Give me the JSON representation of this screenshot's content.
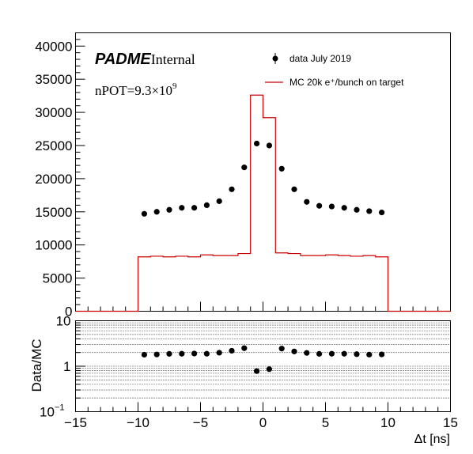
{
  "chart_data": [
    {
      "type": "histogram+points",
      "logo": {
        "bold": "PADME",
        "suffix": "Internal"
      },
      "annotation": {
        "prefix": "nPOT=9.3×10",
        "exponent": "9"
      },
      "legend": {
        "placement": "top-right",
        "data_label": "data July 2019",
        "mc_label": "MC 20k e⁺/bunch on target"
      },
      "x": [
        -14.5,
        -13.5,
        -12.5,
        -11.5,
        -10.5,
        -9.5,
        -8.5,
        -7.5,
        -6.5,
        -5.5,
        -4.5,
        -3.5,
        -2.5,
        -1.5,
        -0.5,
        0.5,
        1.5,
        2.5,
        3.5,
        4.5,
        5.5,
        6.5,
        7.5,
        8.5,
        9.5,
        10.5,
        11.5,
        12.5,
        13.5,
        14.5
      ],
      "series": [
        {
          "name": "data July 2019",
          "style": "points",
          "x": [
            -9.5,
            -8.5,
            -7.5,
            -6.5,
            -5.5,
            -4.5,
            -3.5,
            -2.5,
            -1.5,
            -0.5,
            0.5,
            1.5,
            2.5,
            3.5,
            4.5,
            5.5,
            6.5,
            7.5,
            8.5,
            9.5
          ],
          "values": [
            14700,
            15000,
            15300,
            15600,
            15600,
            16000,
            16600,
            18400,
            21700,
            25300,
            25000,
            21500,
            18400,
            16500,
            15900,
            15800,
            15600,
            15300,
            15100,
            14900
          ]
        },
        {
          "name": "MC 20k e⁺/bunch on target",
          "style": "step",
          "bin_edges": [
            -15,
            -14,
            -13,
            -12,
            -11,
            -10,
            -9,
            -8,
            -7,
            -6,
            -5,
            -4,
            -3,
            -2,
            -1,
            0,
            1,
            2,
            3,
            4,
            5,
            6,
            7,
            8,
            9,
            10,
            11,
            12,
            13,
            14,
            15
          ],
          "values": [
            0,
            0,
            0,
            0,
            0,
            8200,
            8300,
            8200,
            8300,
            8200,
            8500,
            8400,
            8400,
            8700,
            32600,
            29200,
            8800,
            8700,
            8400,
            8400,
            8500,
            8400,
            8300,
            8400,
            8200,
            0,
            0,
            0,
            0,
            0
          ]
        }
      ],
      "xlim": [
        -15,
        15
      ],
      "ylim": [
        0,
        42000
      ],
      "xticks": [
        "−15",
        "−10",
        "−5",
        "0",
        "5",
        "10",
        "15"
      ],
      "yticks": [
        "0",
        "5000",
        "10000",
        "15000",
        "20000",
        "25000",
        "30000",
        "35000",
        "40000"
      ]
    },
    {
      "type": "scatter",
      "ylabel": "Data/MC",
      "xlabel": "Δt [ns]",
      "yscale": "log",
      "ylim": [
        0.1,
        10
      ],
      "grid": "dotted horizontal",
      "x": [
        -9.5,
        -8.5,
        -7.5,
        -6.5,
        -5.5,
        -4.5,
        -3.5,
        -2.5,
        -1.5,
        -0.5,
        0.5,
        1.5,
        2.5,
        3.5,
        4.5,
        5.5,
        6.5,
        7.5,
        8.5,
        9.5
      ],
      "values": [
        1.79,
        1.81,
        1.87,
        1.88,
        1.9,
        1.88,
        1.98,
        2.19,
        2.49,
        0.78,
        0.86,
        2.44,
        2.11,
        1.96,
        1.87,
        1.88,
        1.88,
        1.84,
        1.8,
        1.82
      ],
      "xticks": [
        "−15",
        "−10",
        "−5",
        "0",
        "5",
        "10",
        "15"
      ],
      "yticks": [
        {
          "base": "10",
          "exp": "−1",
          "value": 0.1
        },
        {
          "base": "1",
          "exp": "",
          "value": 1
        },
        {
          "base": "10",
          "exp": "",
          "value": 10
        }
      ]
    }
  ]
}
